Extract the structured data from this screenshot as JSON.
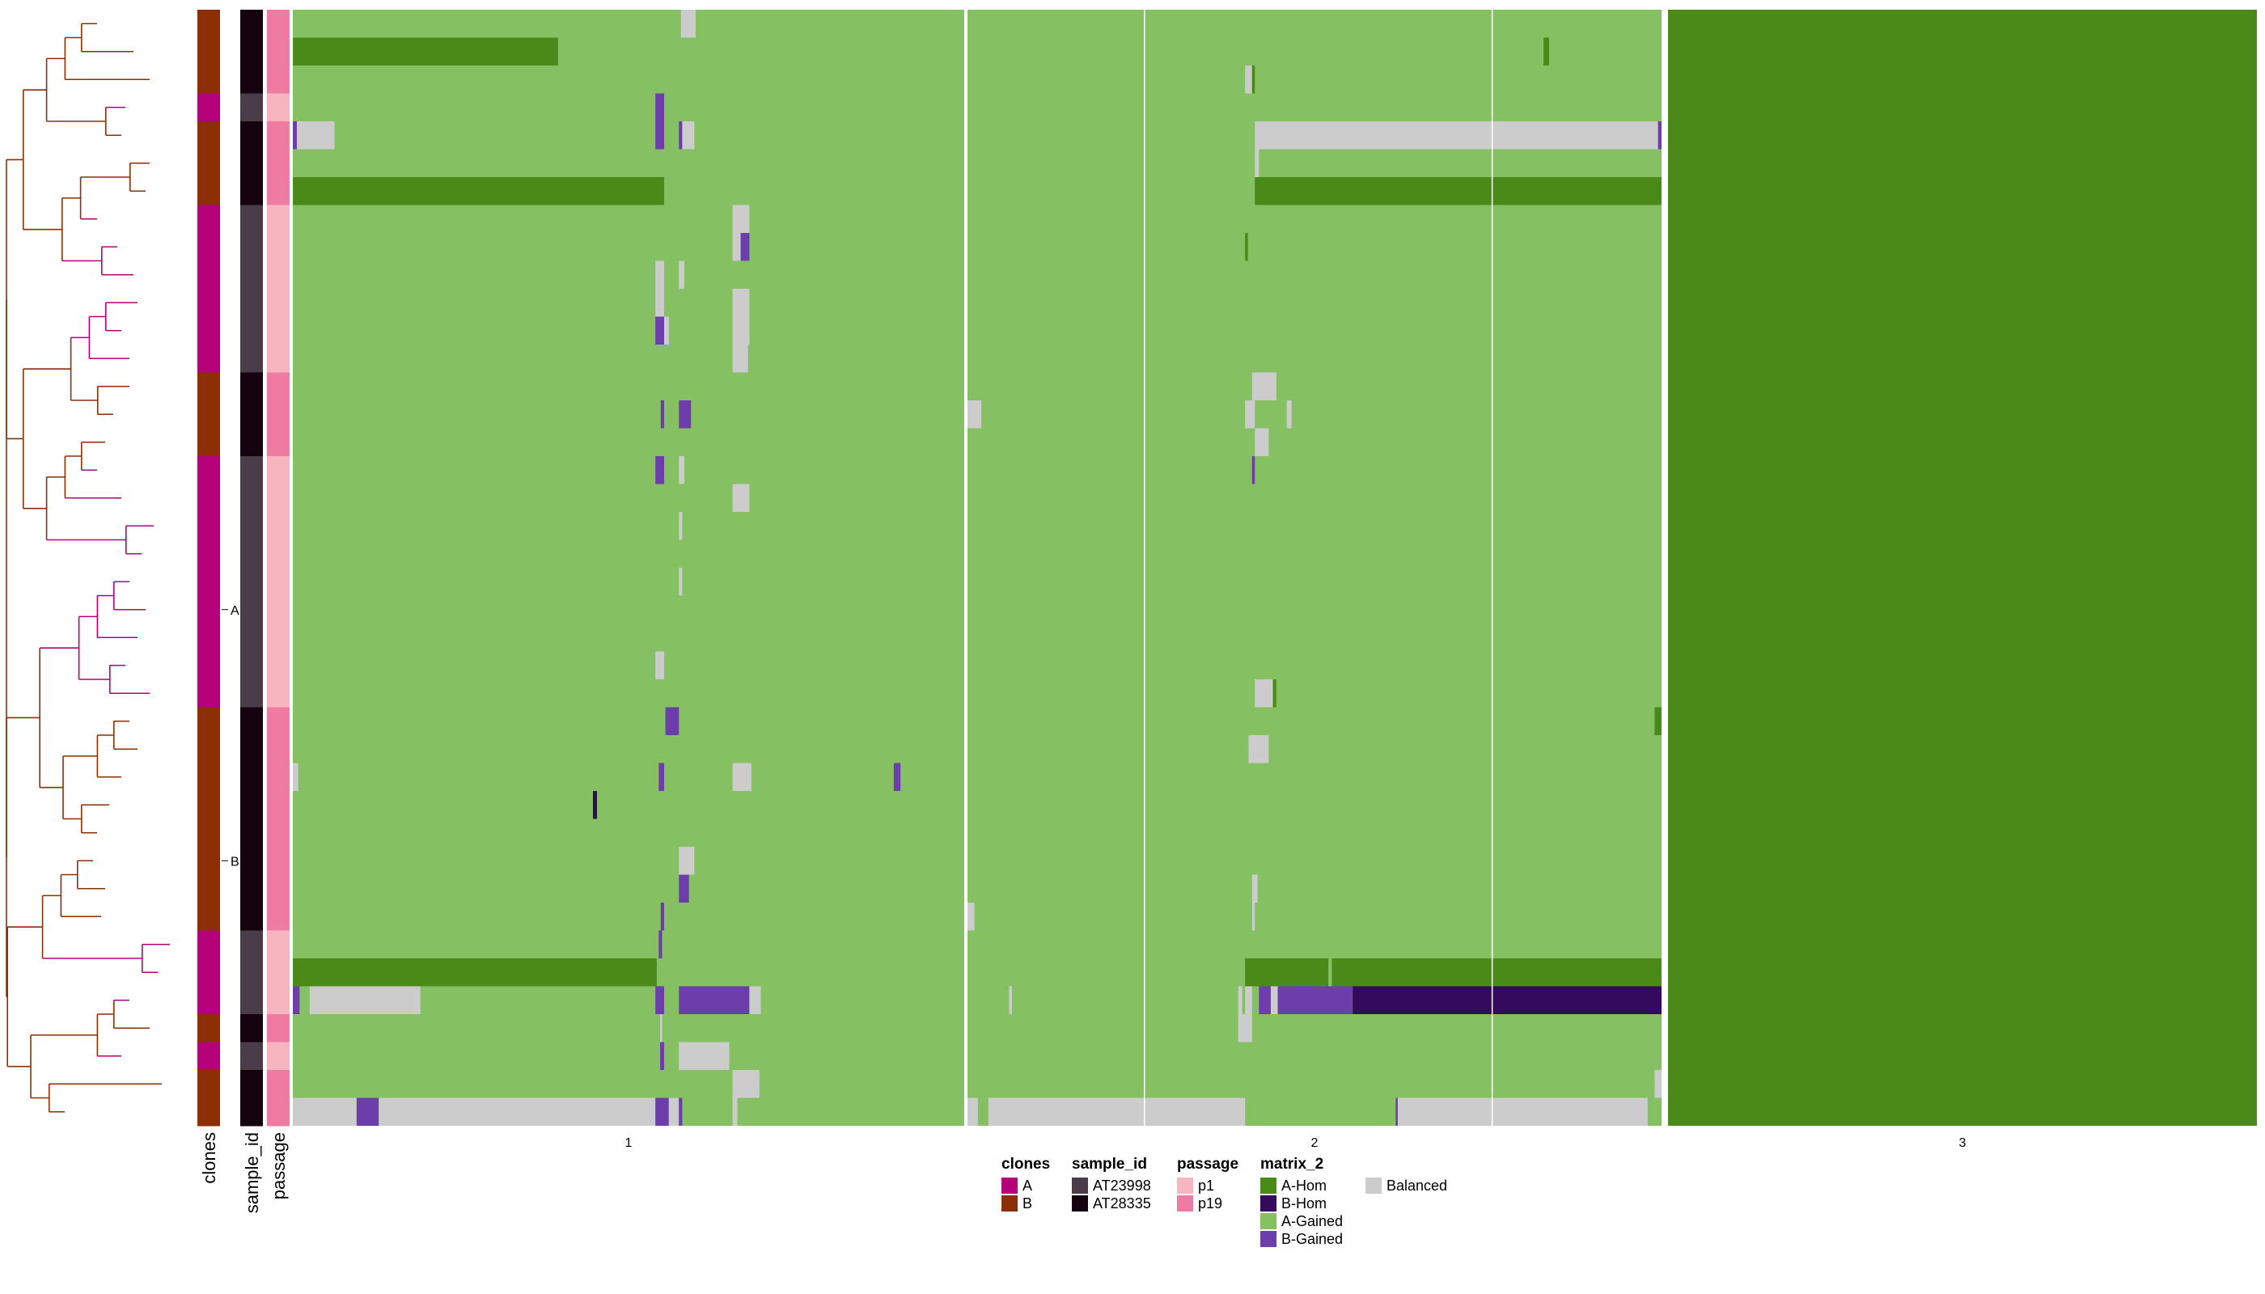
{
  "chart_data": {
    "type": "heatmap",
    "title": "",
    "xlabel": "",
    "ylabel": "",
    "column_groups": [
      "1",
      "2",
      "3"
    ],
    "annotation_tracks": [
      "clones",
      "sample_id",
      "passage"
    ],
    "row_split_labels": [
      "A",
      "B"
    ],
    "n_rows": 40,
    "rows": [
      {
        "clone": "B",
        "sample_id": "AT28335",
        "passage": "p19"
      },
      {
        "clone": "B",
        "sample_id": "AT28335",
        "passage": "p19"
      },
      {
        "clone": "B",
        "sample_id": "AT28335",
        "passage": "p19"
      },
      {
        "clone": "A",
        "sample_id": "AT23998",
        "passage": "p1"
      },
      {
        "clone": "B",
        "sample_id": "AT28335",
        "passage": "p19"
      },
      {
        "clone": "B",
        "sample_id": "AT28335",
        "passage": "p19"
      },
      {
        "clone": "B",
        "sample_id": "AT28335",
        "passage": "p19"
      },
      {
        "clone": "A",
        "sample_id": "AT23998",
        "passage": "p1"
      },
      {
        "clone": "A",
        "sample_id": "AT23998",
        "passage": "p1"
      },
      {
        "clone": "A",
        "sample_id": "AT23998",
        "passage": "p1"
      },
      {
        "clone": "A",
        "sample_id": "AT23998",
        "passage": "p1"
      },
      {
        "clone": "A",
        "sample_id": "AT23998",
        "passage": "p1"
      },
      {
        "clone": "A",
        "sample_id": "AT23998",
        "passage": "p1"
      },
      {
        "clone": "B",
        "sample_id": "AT28335",
        "passage": "p19"
      },
      {
        "clone": "B",
        "sample_id": "AT28335",
        "passage": "p19"
      },
      {
        "clone": "B",
        "sample_id": "AT28335",
        "passage": "p19"
      },
      {
        "clone": "A",
        "sample_id": "AT23998",
        "passage": "p1"
      },
      {
        "clone": "A",
        "sample_id": "AT23998",
        "passage": "p1"
      },
      {
        "clone": "A",
        "sample_id": "AT23998",
        "passage": "p1"
      },
      {
        "clone": "A",
        "sample_id": "AT23998",
        "passage": "p1"
      },
      {
        "clone": "A",
        "sample_id": "AT23998",
        "passage": "p1"
      },
      {
        "clone": "A",
        "sample_id": "AT23998",
        "passage": "p1"
      },
      {
        "clone": "A",
        "sample_id": "AT23998",
        "passage": "p1"
      },
      {
        "clone": "A",
        "sample_id": "AT23998",
        "passage": "p1"
      },
      {
        "clone": "A",
        "sample_id": "AT23998",
        "passage": "p1"
      },
      {
        "clone": "B",
        "sample_id": "AT28335",
        "passage": "p19"
      },
      {
        "clone": "B",
        "sample_id": "AT28335",
        "passage": "p19"
      },
      {
        "clone": "B",
        "sample_id": "AT28335",
        "passage": "p19"
      },
      {
        "clone": "B",
        "sample_id": "AT28335",
        "passage": "p19"
      },
      {
        "clone": "B",
        "sample_id": "AT28335",
        "passage": "p19"
      },
      {
        "clone": "B",
        "sample_id": "AT28335",
        "passage": "p19"
      },
      {
        "clone": "B",
        "sample_id": "AT28335",
        "passage": "p19"
      },
      {
        "clone": "B",
        "sample_id": "AT28335",
        "passage": "p19"
      },
      {
        "clone": "A",
        "sample_id": "AT23998",
        "passage": "p1"
      },
      {
        "clone": "A",
        "sample_id": "AT23998",
        "passage": "p1"
      },
      {
        "clone": "A",
        "sample_id": "AT23998",
        "passage": "p1"
      },
      {
        "clone": "B",
        "sample_id": "AT28335",
        "passage": "p19"
      },
      {
        "clone": "A",
        "sample_id": "AT23998",
        "passage": "p1"
      },
      {
        "clone": "B",
        "sample_id": "AT28335",
        "passage": "p19"
      },
      {
        "clone": "B",
        "sample_id": "AT28335",
        "passage": "p19"
      }
    ],
    "grid": false,
    "legend_position": "bottom",
    "legends": [
      {
        "title": "clones",
        "items": [
          {
            "label": "A",
            "color": "#b5007a"
          },
          {
            "label": "B",
            "color": "#8b2f06"
          }
        ]
      },
      {
        "title": "sample_id",
        "items": [
          {
            "label": "AT23998",
            "color": "#4a3c48"
          },
          {
            "label": "AT28335",
            "color": "#14020f"
          }
        ]
      },
      {
        "title": "passage",
        "items": [
          {
            "label": "p1",
            "color": "#f7b5c0"
          },
          {
            "label": "p19",
            "color": "#ef7ba3"
          }
        ]
      },
      {
        "title": "matrix_2",
        "items": [
          {
            "label": "A-Hom",
            "color": "#4a8a19"
          },
          {
            "label": "B-Hom",
            "color": "#330a5c"
          },
          {
            "label": "A-Gained",
            "color": "#85c062"
          },
          {
            "label": "B-Gained",
            "color": "#6c3dab"
          },
          {
            "label": "Balanced",
            "color": "#cccccc"
          }
        ]
      }
    ],
    "colors": {
      "A-Hom": "#4a8a19",
      "B-Hom": "#330a5c",
      "A-Gained": "#85c062",
      "B-Gained": "#6c3dab",
      "Balanced": "#cccccc",
      "clone_A": "#b5007a",
      "clone_B": "#8b2f06",
      "AT23998": "#4a3c48",
      "AT28335": "#14020f",
      "p1": "#f7b5c0",
      "p19": "#ef7ba3"
    },
    "column_group_default": {
      "1": "A-Gained",
      "2": "A-Gained",
      "3": "A-Hom"
    },
    "segments": [
      {
        "row": 0,
        "col": "1",
        "from": 0.578,
        "to": 0.6,
        "state": "Balanced"
      },
      {
        "row": 1,
        "col": "1",
        "from": 0.0,
        "to": 0.395,
        "state": "A-Hom"
      },
      {
        "row": 1,
        "col": "2",
        "from": 0.83,
        "to": 0.838,
        "state": "A-Hom"
      },
      {
        "row": 2,
        "col": "2",
        "from": 0.4,
        "to": 0.41,
        "state": "Balanced"
      },
      {
        "row": 2,
        "col": "2",
        "from": 0.41,
        "to": 0.414,
        "state": "A-Hom"
      },
      {
        "row": 3,
        "col": "1",
        "from": 0.54,
        "to": 0.553,
        "state": "B-Gained"
      },
      {
        "row": 4,
        "col": "1",
        "from": 0.0,
        "to": 0.006,
        "state": "B-Gained"
      },
      {
        "row": 4,
        "col": "1",
        "from": 0.006,
        "to": 0.062,
        "state": "Balanced"
      },
      {
        "row": 4,
        "col": "1",
        "from": 0.54,
        "to": 0.553,
        "state": "B-Gained"
      },
      {
        "row": 4,
        "col": "1",
        "from": 0.575,
        "to": 0.58,
        "state": "B-Gained"
      },
      {
        "row": 4,
        "col": "1",
        "from": 0.58,
        "to": 0.598,
        "state": "Balanced"
      },
      {
        "row": 4,
        "col": "2",
        "from": 0.414,
        "to": 0.995,
        "state": "Balanced"
      },
      {
        "row": 4,
        "col": "2",
        "from": 0.995,
        "to": 1.0,
        "state": "B-Gained"
      },
      {
        "row": 5,
        "col": "2",
        "from": 0.414,
        "to": 0.42,
        "state": "Balanced"
      },
      {
        "row": 6,
        "col": "1",
        "from": 0.0,
        "to": 0.553,
        "state": "A-Hom"
      },
      {
        "row": 6,
        "col": "2",
        "from": 0.414,
        "to": 1.0,
        "state": "A-Hom"
      },
      {
        "row": 7,
        "col": "1",
        "from": 0.655,
        "to": 0.68,
        "state": "Balanced"
      },
      {
        "row": 8,
        "col": "1",
        "from": 0.655,
        "to": 0.667,
        "state": "Balanced"
      },
      {
        "row": 8,
        "col": "1",
        "from": 0.667,
        "to": 0.68,
        "state": "B-Gained"
      },
      {
        "row": 8,
        "col": "2",
        "from": 0.4,
        "to": 0.404,
        "state": "A-Hom"
      },
      {
        "row": 9,
        "col": "1",
        "from": 0.54,
        "to": 0.553,
        "state": "Balanced"
      },
      {
        "row": 9,
        "col": "1",
        "from": 0.575,
        "to": 0.583,
        "state": "Balanced"
      },
      {
        "row": 10,
        "col": "1",
        "from": 0.655,
        "to": 0.68,
        "state": "Balanced"
      },
      {
        "row": 10,
        "col": "1",
        "from": 0.54,
        "to": 0.553,
        "state": "Balanced"
      },
      {
        "row": 11,
        "col": "1",
        "from": 0.54,
        "to": 0.553,
        "state": "B-Gained"
      },
      {
        "row": 11,
        "col": "1",
        "from": 0.553,
        "to": 0.56,
        "state": "Balanced"
      },
      {
        "row": 11,
        "col": "1",
        "from": 0.655,
        "to": 0.68,
        "state": "Balanced"
      },
      {
        "row": 12,
        "col": "1",
        "from": 0.655,
        "to": 0.678,
        "state": "Balanced"
      },
      {
        "row": 13,
        "col": "2",
        "from": 0.41,
        "to": 0.445,
        "state": "Balanced"
      },
      {
        "row": 14,
        "col": "1",
        "from": 0.548,
        "to": 0.553,
        "state": "B-Gained"
      },
      {
        "row": 14,
        "col": "1",
        "from": 0.575,
        "to": 0.593,
        "state": "B-Gained"
      },
      {
        "row": 14,
        "col": "2",
        "from": 0.0,
        "to": 0.02,
        "state": "Balanced"
      },
      {
        "row": 14,
        "col": "2",
        "from": 0.4,
        "to": 0.414,
        "state": "Balanced"
      },
      {
        "row": 14,
        "col": "2",
        "from": 0.46,
        "to": 0.467,
        "state": "Balanced"
      },
      {
        "row": 15,
        "col": "2",
        "from": 0.414,
        "to": 0.434,
        "state": "Balanced"
      },
      {
        "row": 16,
        "col": "1",
        "from": 0.54,
        "to": 0.553,
        "state": "B-Gained"
      },
      {
        "row": 16,
        "col": "1",
        "from": 0.575,
        "to": 0.583,
        "state": "Balanced"
      },
      {
        "row": 16,
        "col": "2",
        "from": 0.41,
        "to": 0.414,
        "state": "B-Gained"
      },
      {
        "row": 17,
        "col": "1",
        "from": 0.655,
        "to": 0.68,
        "state": "Balanced"
      },
      {
        "row": 18,
        "col": "1",
        "from": 0.575,
        "to": 0.58,
        "state": "Balanced"
      },
      {
        "row": 20,
        "col": "1",
        "from": 0.575,
        "to": 0.58,
        "state": "Balanced"
      },
      {
        "row": 23,
        "col": "1",
        "from": 0.54,
        "to": 0.553,
        "state": "Balanced"
      },
      {
        "row": 24,
        "col": "2",
        "from": 0.414,
        "to": 0.44,
        "state": "Balanced"
      },
      {
        "row": 24,
        "col": "2",
        "from": 0.44,
        "to": 0.445,
        "state": "A-Hom"
      },
      {
        "row": 25,
        "col": "1",
        "from": 0.555,
        "to": 0.575,
        "state": "B-Gained"
      },
      {
        "row": 25,
        "col": "2",
        "from": 0.99,
        "to": 1.0,
        "state": "A-Hom"
      },
      {
        "row": 26,
        "col": "2",
        "from": 0.405,
        "to": 0.434,
        "state": "Balanced"
      },
      {
        "row": 27,
        "col": "1",
        "from": 0.0,
        "to": 0.008,
        "state": "Balanced"
      },
      {
        "row": 27,
        "col": "1",
        "from": 0.545,
        "to": 0.553,
        "state": "B-Gained"
      },
      {
        "row": 27,
        "col": "1",
        "from": 0.655,
        "to": 0.683,
        "state": "Balanced"
      },
      {
        "row": 27,
        "col": "1",
        "from": 0.895,
        "to": 0.905,
        "state": "B-Gained"
      },
      {
        "row": 28,
        "col": "1",
        "from": 0.447,
        "to": 0.453,
        "state": "B-Hom"
      },
      {
        "row": 30,
        "col": "1",
        "from": 0.575,
        "to": 0.598,
        "state": "Balanced"
      },
      {
        "row": 31,
        "col": "1",
        "from": 0.575,
        "to": 0.59,
        "state": "B-Gained"
      },
      {
        "row": 31,
        "col": "2",
        "from": 0.41,
        "to": 0.418,
        "state": "Balanced"
      },
      {
        "row": 32,
        "col": "1",
        "from": 0.548,
        "to": 0.553,
        "state": "B-Gained"
      },
      {
        "row": 32,
        "col": "2",
        "from": 0.0,
        "to": 0.01,
        "state": "Balanced"
      },
      {
        "row": 32,
        "col": "2",
        "from": 0.41,
        "to": 0.414,
        "state": "Balanced"
      },
      {
        "row": 33,
        "col": "1",
        "from": 0.545,
        "to": 0.55,
        "state": "B-Gained"
      },
      {
        "row": 34,
        "col": "1",
        "from": 0.0,
        "to": 0.542,
        "state": "A-Hom"
      },
      {
        "row": 34,
        "col": "2",
        "from": 0.4,
        "to": 0.52,
        "state": "A-Hom"
      },
      {
        "row": 34,
        "col": "2",
        "from": 0.525,
        "to": 1.0,
        "state": "A-Hom"
      },
      {
        "row": 35,
        "col": "1",
        "from": 0.0,
        "to": 0.01,
        "state": "B-Gained"
      },
      {
        "row": 35,
        "col": "1",
        "from": 0.025,
        "to": 0.19,
        "state": "Balanced"
      },
      {
        "row": 35,
        "col": "1",
        "from": 0.54,
        "to": 0.553,
        "state": "B-Gained"
      },
      {
        "row": 35,
        "col": "1",
        "from": 0.575,
        "to": 0.68,
        "state": "B-Gained"
      },
      {
        "row": 35,
        "col": "1",
        "from": 0.68,
        "to": 0.697,
        "state": "Balanced"
      },
      {
        "row": 35,
        "col": "2",
        "from": 0.06,
        "to": 0.064,
        "state": "Balanced"
      },
      {
        "row": 35,
        "col": "2",
        "from": 0.39,
        "to": 0.396,
        "state": "Balanced"
      },
      {
        "row": 35,
        "col": "2",
        "from": 0.4,
        "to": 0.41,
        "state": "Balanced"
      },
      {
        "row": 35,
        "col": "2",
        "from": 0.42,
        "to": 0.437,
        "state": "B-Gained"
      },
      {
        "row": 35,
        "col": "2",
        "from": 0.437,
        "to": 0.447,
        "state": "Balanced"
      },
      {
        "row": 35,
        "col": "2",
        "from": 0.447,
        "to": 0.555,
        "state": "B-Gained"
      },
      {
        "row": 35,
        "col": "2",
        "from": 0.555,
        "to": 1.0,
        "state": "B-Hom"
      },
      {
        "row": 36,
        "col": "1",
        "from": 0.547,
        "to": 0.55,
        "state": "Balanced"
      },
      {
        "row": 36,
        "col": "2",
        "from": 0.39,
        "to": 0.41,
        "state": "Balanced"
      },
      {
        "row": 37,
        "col": "1",
        "from": 0.547,
        "to": 0.553,
        "state": "B-Gained"
      },
      {
        "row": 37,
        "col": "1",
        "from": 0.575,
        "to": 0.65,
        "state": "Balanced"
      },
      {
        "row": 38,
        "col": "1",
        "from": 0.655,
        "to": 0.695,
        "state": "Balanced"
      },
      {
        "row": 38,
        "col": "2",
        "from": 0.99,
        "to": 1.0,
        "state": "Balanced"
      },
      {
        "row": 39,
        "col": "1",
        "from": 0.0,
        "to": 0.095,
        "state": "Balanced"
      },
      {
        "row": 39,
        "col": "1",
        "from": 0.095,
        "to": 0.128,
        "state": "B-Gained"
      },
      {
        "row": 39,
        "col": "1",
        "from": 0.128,
        "to": 0.54,
        "state": "Balanced"
      },
      {
        "row": 39,
        "col": "1",
        "from": 0.54,
        "to": 0.56,
        "state": "B-Gained"
      },
      {
        "row": 39,
        "col": "1",
        "from": 0.56,
        "to": 0.575,
        "state": "Balanced"
      },
      {
        "row": 39,
        "col": "1",
        "from": 0.575,
        "to": 0.58,
        "state": "B-Gained"
      },
      {
        "row": 39,
        "col": "1",
        "from": 0.655,
        "to": 0.662,
        "state": "Balanced"
      },
      {
        "row": 39,
        "col": "2",
        "from": 0.0,
        "to": 0.015,
        "state": "Balanced"
      },
      {
        "row": 39,
        "col": "2",
        "from": 0.03,
        "to": 0.4,
        "state": "Balanced"
      },
      {
        "row": 39,
        "col": "2",
        "from": 0.617,
        "to": 0.62,
        "state": "B-Gained"
      },
      {
        "row": 39,
        "col": "2",
        "from": 0.62,
        "to": 0.98,
        "state": "Balanced"
      }
    ]
  }
}
